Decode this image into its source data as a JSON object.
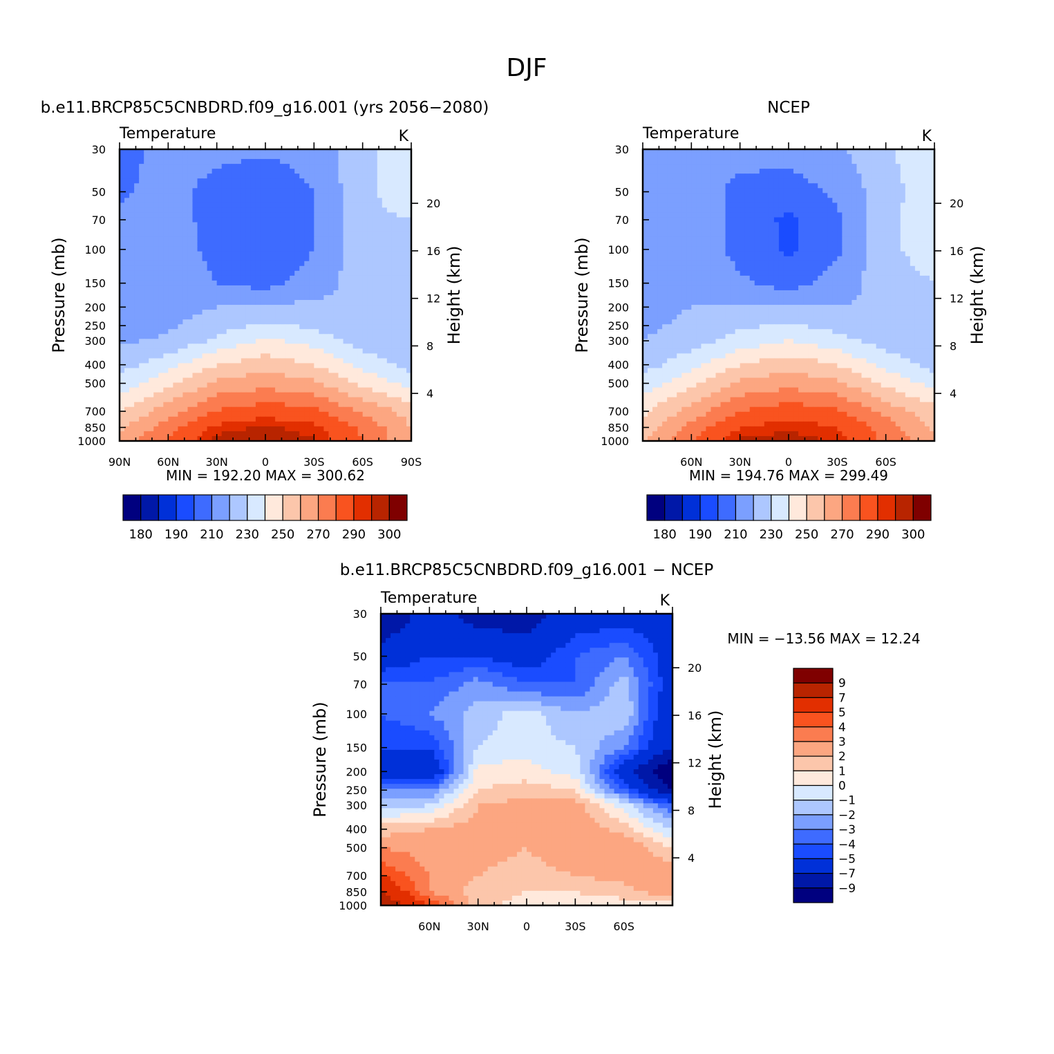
{
  "figure": {
    "title": "DJF"
  },
  "palettes": {
    "abs": [
      "#00007f",
      "#0018a8",
      "#0030d8",
      "#1a4cff",
      "#3e6bff",
      "#7b9fff",
      "#adc7ff",
      "#d8e9ff",
      "#ffe9dc",
      "#fcc6ab",
      "#fca681",
      "#fb7c50",
      "#f9531f",
      "#e22f00",
      "#b82400",
      "#7f0000"
    ],
    "diff": [
      "#00007f",
      "#0018a8",
      "#0030d8",
      "#1a4cff",
      "#3e6bff",
      "#7b9fff",
      "#adc7ff",
      "#d8e9ff",
      "#ffe9dc",
      "#fcc6ab",
      "#fca681",
      "#fb7c50",
      "#f9531f",
      "#e22f00",
      "#b82400",
      "#7f0000"
    ]
  },
  "panels": [
    {
      "id": "model",
      "title": "b.e11.BRCP85C5CNBDRD.f09_g16.001 (yrs 2056−2080)",
      "left_label": "Temperature",
      "right_label": "K",
      "ylabel": "Pressure  (mb)",
      "y2label": "Height  (km)",
      "min_max": "MIN  =  192.20   MAX  =  300.62",
      "x_tick_labels": [
        "90N",
        "60N",
        "30N",
        "0",
        "30S",
        "60S",
        "90S"
      ],
      "x_tick_values": [
        90,
        60,
        30,
        0,
        -30,
        -60,
        -90
      ],
      "y_tick_labels": [
        "30",
        "50",
        "70",
        "100",
        "150",
        "200",
        "250",
        "300",
        "400",
        "500",
        "700",
        "850",
        "1000"
      ],
      "y_tick_values": [
        30,
        50,
        70,
        100,
        150,
        200,
        250,
        300,
        400,
        500,
        700,
        850,
        1000
      ],
      "y2_tick_labels": [
        "20",
        "16",
        "12",
        "8",
        "4"
      ],
      "y2_tick_values": [
        20,
        16,
        12,
        8,
        4
      ],
      "colorbar_labels": [
        "180",
        "190",
        "210",
        "230",
        "250",
        "270",
        "290",
        "300"
      ]
    },
    {
      "id": "obs",
      "title": "NCEP",
      "left_label": "Temperature",
      "right_label": "K",
      "ylabel": "Pressure  (mb)",
      "y2label": "Height  (km)",
      "min_max": "MIN  =  194.76   MAX  =  299.49",
      "x_tick_labels": [
        "60N",
        "30N",
        "0",
        "30S",
        "60S"
      ],
      "x_tick_values": [
        60,
        30,
        0,
        -30,
        -60
      ],
      "y_tick_labels": [
        "30",
        "50",
        "70",
        "100",
        "150",
        "200",
        "250",
        "300",
        "400",
        "500",
        "700",
        "850",
        "1000"
      ],
      "y_tick_values": [
        30,
        50,
        70,
        100,
        150,
        200,
        250,
        300,
        400,
        500,
        700,
        850,
        1000
      ],
      "y2_tick_labels": [
        "20",
        "16",
        "12",
        "8",
        "4"
      ],
      "y2_tick_values": [
        20,
        16,
        12,
        8,
        4
      ],
      "colorbar_labels": [
        "180",
        "190",
        "210",
        "230",
        "250",
        "270",
        "290",
        "300"
      ]
    },
    {
      "id": "diff",
      "title": "b.e11.BRCP85C5CNBDRD.f09_g16.001  −  NCEP",
      "left_label": "Temperature",
      "right_label": "K",
      "ylabel": "Pressure  (mb)",
      "y2label": "Height  (km)",
      "min_max": "MIN  =  −13.56   MAX  =    12.24",
      "x_tick_labels": [
        "60N",
        "30N",
        "0",
        "30S",
        "60S"
      ],
      "x_tick_values": [
        60,
        30,
        0,
        -30,
        -60
      ],
      "y_tick_labels": [
        "30",
        "50",
        "70",
        "100",
        "150",
        "200",
        "250",
        "300",
        "400",
        "500",
        "700",
        "850",
        "1000"
      ],
      "y_tick_values": [
        30,
        50,
        70,
        100,
        150,
        200,
        250,
        300,
        400,
        500,
        700,
        850,
        1000
      ],
      "y2_tick_labels": [
        "20",
        "16",
        "12",
        "8",
        "4"
      ],
      "y2_tick_values": [
        20,
        16,
        12,
        8,
        4
      ],
      "colorbar_labels": [
        "9",
        "7",
        "5",
        "4",
        "3",
        "2",
        "1",
        "0",
        "−1",
        "−2",
        "−3",
        "−4",
        "−5",
        "−7",
        "−9"
      ]
    }
  ],
  "chart_data": [
    {
      "type": "heatmap",
      "title": "b.e11.BRCP85C5CNBDRD.f09_g16.001 (yrs 2056−2080)",
      "xlabel": "",
      "ylabel": "Pressure  (mb)",
      "y2label": "Height  (km)",
      "xlim": [
        90,
        -90
      ],
      "ylim": [
        1000,
        30
      ],
      "y_scale": "log",
      "value_min": 192.2,
      "value_max": 300.62,
      "levels": [
        180,
        185,
        190,
        200,
        210,
        220,
        230,
        240,
        250,
        260,
        270,
        280,
        290,
        295,
        300
      ],
      "latitudes": [
        90,
        60,
        30,
        0,
        -30,
        -60,
        -90
      ],
      "pressures": [
        30,
        50,
        70,
        100,
        150,
        200,
        250,
        300,
        400,
        500,
        700,
        850,
        1000
      ],
      "values": [
        [
          205,
          215,
          214,
          212,
          215,
          225,
          240
        ],
        [
          208,
          215,
          205,
          200,
          210,
          228,
          235
        ],
        [
          212,
          216,
          205,
          200,
          210,
          228,
          230
        ],
        [
          214,
          217,
          206,
          200,
          210,
          227,
          230
        ],
        [
          214,
          218,
          210,
          206,
          215,
          225,
          228
        ],
        [
          212,
          216,
          220,
          222,
          222,
          222,
          222
        ],
        [
          214,
          218,
          226,
          232,
          228,
          222,
          222
        ],
        [
          218,
          222,
          232,
          242,
          236,
          226,
          222
        ],
        [
          226,
          236,
          250,
          256,
          250,
          236,
          226
        ],
        [
          234,
          248,
          262,
          266,
          262,
          248,
          236
        ],
        [
          250,
          265,
          281,
          286,
          283,
          268,
          256
        ],
        [
          257,
          276,
          292,
          296,
          292,
          278,
          260
        ],
        [
          262,
          282,
          298,
          300,
          296,
          280,
          262
        ]
      ]
    },
    {
      "type": "heatmap",
      "title": "NCEP",
      "xlabel": "",
      "ylabel": "Pressure  (mb)",
      "y2label": "Height  (km)",
      "xlim": [
        90,
        -90
      ],
      "ylim": [
        1000,
        30
      ],
      "y_scale": "log",
      "value_min": 194.76,
      "value_max": 299.49,
      "levels": [
        180,
        185,
        190,
        200,
        210,
        220,
        230,
        240,
        250,
        260,
        270,
        280,
        290,
        295,
        300
      ],
      "latitudes": [
        90,
        60,
        30,
        0,
        -30,
        -60,
        -90
      ],
      "pressures": [
        30,
        50,
        70,
        100,
        150,
        200,
        250,
        300,
        400,
        500,
        700,
        850,
        1000
      ],
      "values": [
        [
          215,
          218,
          215,
          214,
          218,
          228,
          240
        ],
        [
          215,
          218,
          206,
          205,
          212,
          226,
          236
        ],
        [
          216,
          219,
          206,
          198,
          208,
          228,
          236
        ],
        [
          217,
          219,
          206,
          198,
          208,
          228,
          234
        ],
        [
          217,
          219,
          212,
          206,
          214,
          226,
          230
        ],
        [
          218,
          220,
          220,
          220,
          220,
          222,
          226
        ],
        [
          218,
          222,
          228,
          232,
          226,
          222,
          222
        ],
        [
          220,
          226,
          234,
          240,
          234,
          226,
          222
        ],
        [
          226,
          236,
          250,
          256,
          250,
          236,
          226
        ],
        [
          234,
          248,
          262,
          266,
          262,
          248,
          236
        ],
        [
          248,
          264,
          280,
          286,
          282,
          266,
          254
        ],
        [
          254,
          274,
          290,
          294,
          290,
          276,
          258
        ],
        [
          258,
          280,
          296,
          298,
          294,
          278,
          262
        ]
      ]
    },
    {
      "type": "heatmap",
      "title": "b.e11.BRCP85C5CNBDRD.f09_g16.001  −  NCEP",
      "xlabel": "",
      "ylabel": "Pressure  (mb)",
      "y2label": "Height  (km)",
      "xlim": [
        90,
        -90
      ],
      "ylim": [
        1000,
        30
      ],
      "y_scale": "log",
      "value_min": -13.56,
      "value_max": 12.24,
      "levels": [
        -9,
        -7,
        -5,
        -4,
        -3,
        -2,
        -1,
        0,
        1,
        2,
        3,
        4,
        5,
        7,
        9
      ],
      "latitudes": [
        90,
        60,
        30,
        0,
        -30,
        -60,
        -90
      ],
      "pressures": [
        30,
        50,
        70,
        100,
        150,
        200,
        250,
        300,
        400,
        500,
        700,
        850,
        1000
      ],
      "values": [
        [
          -9,
          -6,
          -8,
          -8,
          -6,
          -6,
          -6
        ],
        [
          -6,
          -5,
          -5,
          -6,
          -4,
          -3,
          -6
        ],
        [
          -4,
          -4,
          -2.5,
          -4,
          -4,
          -1.5,
          -6
        ],
        [
          -4,
          -3,
          -1.5,
          -0.5,
          -2,
          -1,
          -7
        ],
        [
          -5,
          -5,
          -1,
          -0.5,
          -1,
          -3,
          -7
        ],
        [
          -6,
          -7,
          0.5,
          0.5,
          -0.5,
          -6,
          -11
        ],
        [
          -3,
          -3,
          1,
          1.5,
          1,
          -4,
          -9
        ],
        [
          -1.5,
          -1,
          2,
          2.5,
          2.5,
          -0.5,
          -4
        ],
        [
          1.5,
          2,
          2.5,
          2.5,
          3,
          1.5,
          -1
        ],
        [
          3,
          2.5,
          2.5,
          2,
          3,
          3,
          1
        ],
        [
          5,
          3,
          2,
          1.5,
          2,
          2.5,
          3
        ],
        [
          7,
          3,
          1.5,
          1,
          1,
          1.5,
          3
        ],
        [
          9,
          5,
          1.5,
          0.5,
          0.5,
          0.5,
          0
        ]
      ]
    }
  ]
}
